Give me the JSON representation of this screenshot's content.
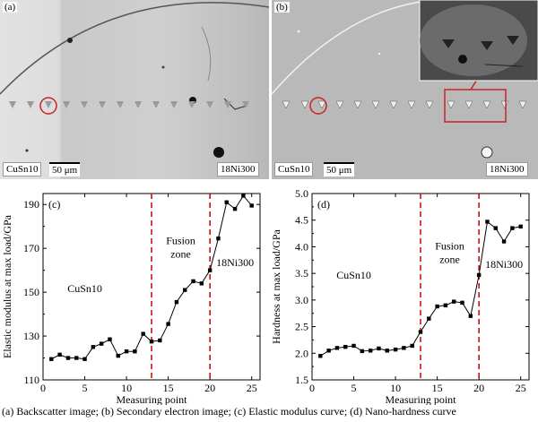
{
  "panels": {
    "a": {
      "label": "(a)",
      "left_material": "CuSn10",
      "right_material": "18Ni300",
      "scale_bar": "50 μm"
    },
    "b": {
      "label": "(b)",
      "left_material": "CuSn10",
      "right_material": "18Ni300",
      "scale_bar": "50 μm"
    }
  },
  "colors": {
    "boundary": "#cc0000",
    "annotation": "#cc2222",
    "series": "#000000"
  },
  "caption": "(a) Backscatter image; (b) Secondary electron image; (c) Elastic modulus curve; (d) Nano-hardness curve",
  "chart_data": [
    {
      "type": "line",
      "panel_label": "(c)",
      "xlabel": "Measuring point",
      "ylabel": "Elastic modulus at max load/GPa",
      "xlim": [
        0,
        26
      ],
      "ylim": [
        110,
        195
      ],
      "xticks": [
        0,
        5,
        10,
        15,
        20,
        25
      ],
      "yticks": [
        110,
        130,
        150,
        170,
        190
      ],
      "boundaries": [
        13,
        20
      ],
      "region_labels": [
        "CuSn10",
        "Fusion\nzone",
        "18Ni300"
      ],
      "x": [
        1,
        2,
        3,
        4,
        5,
        6,
        7,
        8,
        9,
        10,
        11,
        12,
        13,
        14,
        15,
        16,
        17,
        18,
        19,
        20,
        21,
        22,
        23,
        24,
        25
      ],
      "values": [
        119.5,
        121.5,
        120.0,
        120.0,
        119.5,
        125.0,
        126.5,
        128.5,
        121.0,
        123.0,
        123.0,
        131.0,
        127.5,
        128.0,
        135.5,
        145.5,
        151.0,
        155.0,
        154.0,
        160.0,
        174.5,
        191.0,
        188.0,
        194.0,
        189.5
      ]
    },
    {
      "type": "line",
      "panel_label": "(d)",
      "xlabel": "Measuring point",
      "ylabel": "Hardness at max load/GPa",
      "xlim": [
        0,
        26
      ],
      "ylim": [
        1.5,
        5.0
      ],
      "xticks": [
        0,
        5,
        10,
        15,
        20,
        25
      ],
      "yticks": [
        1.5,
        2.0,
        2.5,
        3.0,
        3.5,
        4.0,
        4.5,
        5.0
      ],
      "boundaries": [
        13,
        20
      ],
      "region_labels": [
        "CuSn10",
        "Fusion\nzone",
        "18Ni300"
      ],
      "x": [
        1,
        2,
        3,
        4,
        5,
        6,
        7,
        8,
        9,
        10,
        11,
        12,
        13,
        14,
        15,
        16,
        17,
        18,
        19,
        20,
        21,
        22,
        23,
        24,
        25
      ],
      "values": [
        1.95,
        2.05,
        2.1,
        2.12,
        2.14,
        2.04,
        2.05,
        2.09,
        2.05,
        2.07,
        2.1,
        2.14,
        2.4,
        2.65,
        2.88,
        2.9,
        2.97,
        2.95,
        2.7,
        3.47,
        4.47,
        4.35,
        4.1,
        4.35,
        4.38
      ]
    }
  ]
}
